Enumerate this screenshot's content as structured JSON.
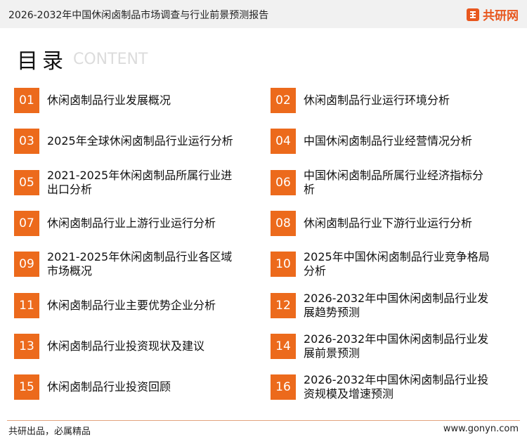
{
  "header": {
    "title": "2026-2032年中国休闲卤制品市场调查与行业前景预测报告",
    "logo": "共研网"
  },
  "section": {
    "title": "目录",
    "subtitle": "CONTENT"
  },
  "items": [
    {
      "number": "01",
      "text": "休闲卤制品行业发展概况"
    },
    {
      "number": "02",
      "text": "休闲卤制品行业运行环境分析"
    },
    {
      "number": "03",
      "text": "2025年全球休闲卤制品行业运行分析"
    },
    {
      "number": "04",
      "text": "中国休闲卤制品行业经营情况分析"
    },
    {
      "number": "05",
      "text": "2021-2025年休闲卤制品所属行业进出口分析"
    },
    {
      "number": "06",
      "text": "中国休闲卤制品所属行业经济指标分析"
    },
    {
      "number": "07",
      "text": "休闲卤制品行业上游行业运行分析"
    },
    {
      "number": "08",
      "text": "休闲卤制品行业下游行业运行分析"
    },
    {
      "number": "09",
      "text": "2021-2025年休闲卤制品行业各区域市场概况"
    },
    {
      "number": "10",
      "text": "2025年中国休闲卤制品行业竞争格局分析"
    },
    {
      "number": "11",
      "text": "休闲卤制品行业主要优势企业分析"
    },
    {
      "number": "12",
      "text": "2026-2032年中国休闲卤制品行业发展趋势预测"
    },
    {
      "number": "13",
      "text": "休闲卤制品行业投资现状及建议"
    },
    {
      "number": "14",
      "text": "2026-2032年中国休闲卤制品行业发展前景预测"
    },
    {
      "number": "15",
      "text": "休闲卤制品行业投资回顾"
    },
    {
      "number": "16",
      "text": "2026-2032年中国休闲卤制品行业投资规模及增速预测"
    }
  ],
  "footer": {
    "left": "共研出品，必属精品",
    "right": "www.gonyn.com"
  }
}
